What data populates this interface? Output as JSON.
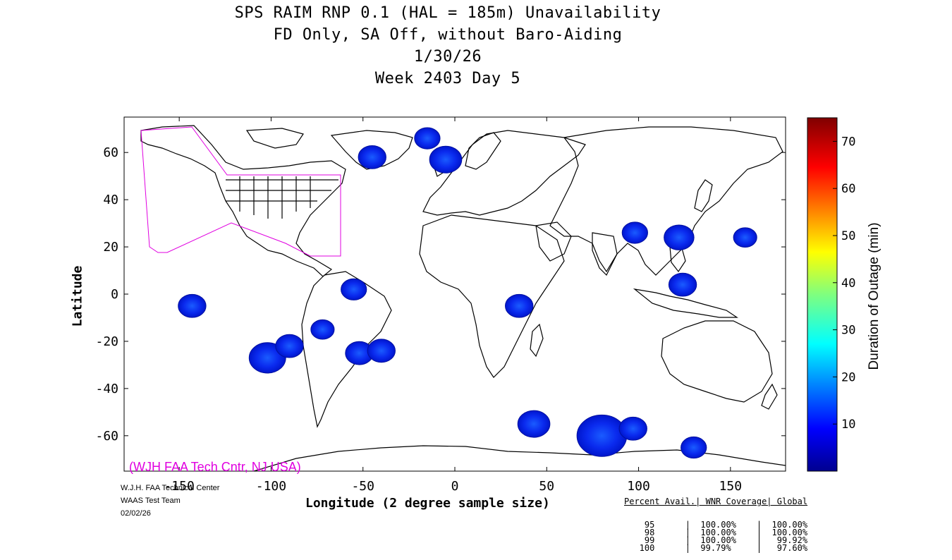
{
  "title": {
    "line1": "SPS RAIM RNP 0.1 (HAL = 185m) Unavailability",
    "line2": "FD Only, SA Off, without Baro-Aiding",
    "line3": "1/30/26",
    "line4": "Week 2403 Day 5"
  },
  "axes": {
    "xlabel": "Longitude (2 degree sample size)",
    "ylabel": "Latitude",
    "xlim": [
      -180,
      180
    ],
    "ylim": [
      -75,
      75
    ],
    "xticks": [
      -150,
      -100,
      -50,
      0,
      50,
      100,
      150
    ],
    "yticks": [
      -60,
      -40,
      -20,
      0,
      20,
      40,
      60
    ]
  },
  "colorbar": {
    "label": "Duration of Outage (min)",
    "range": [
      0,
      75
    ],
    "ticks": [
      10,
      20,
      30,
      40,
      50,
      60,
      70
    ]
  },
  "watermark": "(WJH FAA Tech Cntr, NJ USA)",
  "credits": {
    "line1": "W.J.H. FAA Technical Center",
    "line2": "WAAS Test Team",
    "line3": "02/02/26"
  },
  "stats": {
    "header": "Percent Avail.| WNR Coverage| Global",
    "rows": [
      {
        "percent": "95",
        "wnr": "100.00%",
        "global": "100.00%"
      },
      {
        "percent": "98",
        "wnr": "100.00%",
        "global": "100.00%"
      },
      {
        "percent": "99",
        "wnr": "100.00%",
        "global": "99.92%"
      },
      {
        "percent": "100",
        "wnr": "99.79%",
        "global": "97.60%"
      }
    ]
  },
  "outage_regions": [
    {
      "lon": -143,
      "lat": -5,
      "minutes": 8
    },
    {
      "lon": -102,
      "lat": -27,
      "minutes": 12
    },
    {
      "lon": -90,
      "lat": -22,
      "minutes": 8
    },
    {
      "lon": -45,
      "lat": 58,
      "minutes": 8
    },
    {
      "lon": -15,
      "lat": 66,
      "minutes": 7
    },
    {
      "lon": -5,
      "lat": 57,
      "minutes": 10
    },
    {
      "lon": -55,
      "lat": 2,
      "minutes": 7
    },
    {
      "lon": -72,
      "lat": -15,
      "minutes": 6
    },
    {
      "lon": -52,
      "lat": -25,
      "minutes": 8
    },
    {
      "lon": -40,
      "lat": -24,
      "minutes": 8
    },
    {
      "lon": 35,
      "lat": -5,
      "minutes": 8
    },
    {
      "lon": 43,
      "lat": -55,
      "minutes": 10
    },
    {
      "lon": 80,
      "lat": -60,
      "minutes": 18
    },
    {
      "lon": 97,
      "lat": -57,
      "minutes": 8
    },
    {
      "lon": 122,
      "lat": 24,
      "minutes": 9
    },
    {
      "lon": 98,
      "lat": 26,
      "minutes": 7
    },
    {
      "lon": 124,
      "lat": 4,
      "minutes": 8
    },
    {
      "lon": 130,
      "lat": -65,
      "minutes": 7
    },
    {
      "lon": 158,
      "lat": 24,
      "minutes": 6
    }
  ],
  "region_outline_color": "#e000e0"
}
